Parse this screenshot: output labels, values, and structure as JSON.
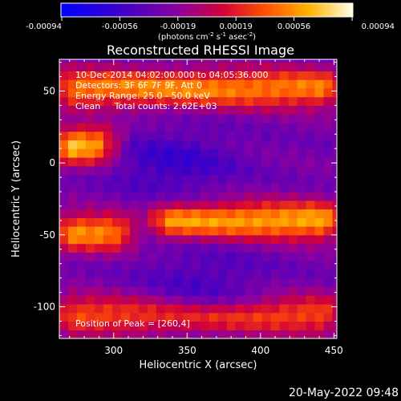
{
  "colorbar": {
    "tick_labels": [
      "-0.00094",
      "-0.00056",
      "-0.00019",
      "0.00019",
      "0.00056",
      "0.00094"
    ],
    "unit_label": "(photons cm",
    "unit_exp1": "-2",
    "unit_mid": " s",
    "unit_exp2": "-1",
    "unit_end": " asec",
    "unit_exp3": "-2",
    "unit_close": ")"
  },
  "chart_data": {
    "type": "heatmap",
    "title": "Reconstructed RHESSI Image",
    "xlabel": "Heliocentric X (arcsec)",
    "ylabel": "Heliocentric Y (arcsec)",
    "xlim": [
      263,
      452
    ],
    "ylim": [
      -122,
      72
    ],
    "x_ticks": [
      "300",
      "350",
      "400",
      "450"
    ],
    "y_ticks": [
      "50",
      "0",
      "-50",
      "-100"
    ],
    "x_tick_values": [
      300,
      350,
      400,
      450
    ],
    "y_tick_values": [
      50,
      0,
      -50,
      -100
    ],
    "color_range": [
      -0.00094,
      0.00094
    ],
    "colormap": "blue-purple-red-yellow-white",
    "annotations": {
      "line1": "10-Dec-2014 04:02:00.000 to 04:05:36.000",
      "line2": "Detectors: 3F 6F 7F 9F, Att 0",
      "line3": "Energy Range: 25.0 - 50.0 keV",
      "line4": "Clean     Total counts: 2.62E+03",
      "peak": "Position of Peak = [260,4]"
    },
    "bands": [
      {
        "name": "top",
        "y_center": 52,
        "x_start": 263,
        "x_end": 452,
        "level": 0.78
      },
      {
        "name": "middle-left",
        "y_center": 12,
        "x_start": 263,
        "x_end": 300,
        "level": 0.95
      },
      {
        "name": "middle-right",
        "y_center": -40,
        "x_start": 330,
        "x_end": 452,
        "level": 0.85
      },
      {
        "name": "lower-left",
        "y_center": -48,
        "x_start": 263,
        "x_end": 310,
        "level": 0.8
      },
      {
        "name": "bottom",
        "y_center": -105,
        "x_start": 263,
        "x_end": 452,
        "level": 0.7
      }
    ],
    "lows": [
      {
        "name": "upper-hole",
        "x_center": 340,
        "y_center": 0,
        "level": 0.2
      },
      {
        "name": "lower-hole",
        "x_center": 360,
        "y_center": -80,
        "level": 0.25
      }
    ]
  },
  "footer": {
    "date": "20-May-2022 09:48"
  }
}
